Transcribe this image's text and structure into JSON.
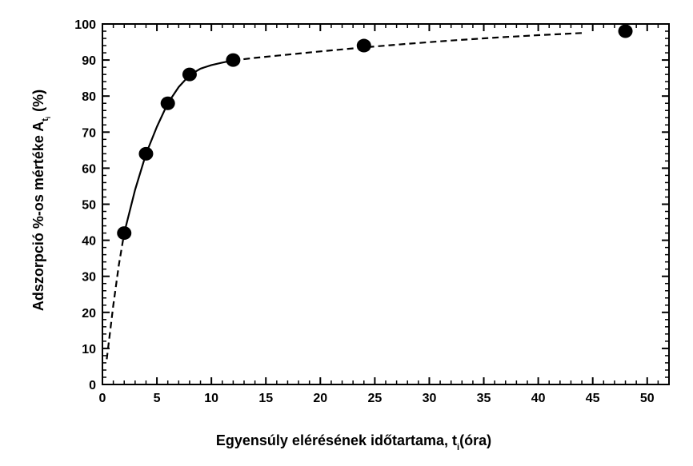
{
  "chart_data": {
    "type": "scatter",
    "xlabel": "Egyensúly elérésének időtartama, t",
    "xlabel_subscript": "i",
    "xlabel_unit": "(óra)",
    "ylabel": "Adszorpció %-os mértéke A",
    "ylabel_subscript": "t",
    "ylabel_subscript2": "i",
    "ylabel_unit": "(%)",
    "xlim": [
      0,
      52
    ],
    "ylim": [
      0,
      100
    ],
    "xticks": [
      0,
      5,
      10,
      15,
      20,
      25,
      30,
      35,
      40,
      45,
      50
    ],
    "yticks": [
      0,
      10,
      20,
      30,
      40,
      50,
      60,
      70,
      80,
      90,
      100
    ],
    "grid": false,
    "legend": "none",
    "series": [
      {
        "style": "markers",
        "x": [
          2,
          4,
          6,
          8,
          12,
          24,
          48
        ],
        "y": [
          42,
          64,
          78,
          86,
          90,
          94,
          98
        ]
      },
      {
        "style": "fit-curve",
        "x": [
          0.4,
          1,
          1.5,
          2,
          3,
          4,
          5,
          6,
          7,
          8,
          9,
          10,
          11,
          12,
          14,
          16,
          18,
          20,
          24,
          28,
          32,
          36,
          40,
          44
        ],
        "y": [
          7,
          22,
          33,
          42,
          54,
          64,
          71.5,
          78,
          82.5,
          85.8,
          87.6,
          88.6,
          89.3,
          89.9,
          90.6,
          91.2,
          91.8,
          92.4,
          93.5,
          94.5,
          95.4,
          96.2,
          96.9,
          97.5
        ]
      }
    ]
  }
}
